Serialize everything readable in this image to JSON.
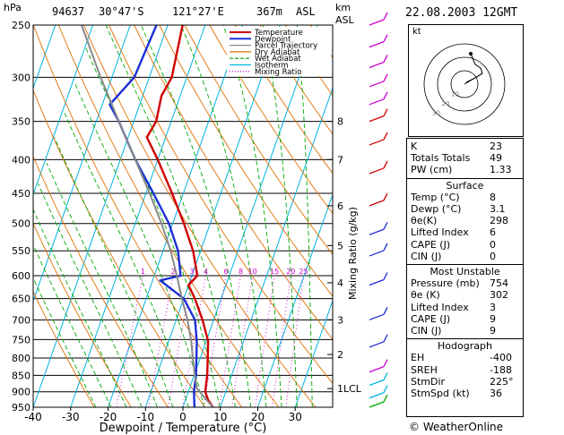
{
  "header": {
    "pressure_unit": "hPa",
    "station_id": "94637",
    "latitude": "30°47'S",
    "longitude": "121°27'E",
    "elevation": "367m",
    "asl": "ASL",
    "km_label": "km",
    "asl_label": "ASL",
    "date": "22.08.2003 12GMT"
  },
  "chart_data": {
    "type": "line",
    "chart_kind": "skew-T log-P",
    "xlabel": "Dewpoint / Temperature (°C)",
    "ylabel": "hPa",
    "xlim": [
      -40,
      40
    ],
    "ylim": [
      950,
      250
    ],
    "y_scale": "log",
    "pressure_ticks": [
      250,
      300,
      350,
      400,
      450,
      500,
      550,
      600,
      650,
      700,
      750,
      800,
      850,
      900,
      950
    ],
    "temperature_ticks": [
      -40,
      -30,
      -20,
      -10,
      0,
      10,
      20,
      30
    ],
    "height_km_ticks": [
      {
        "label": "8",
        "p": 350
      },
      {
        "label": "7",
        "p": 400
      },
      {
        "label": "6",
        "p": 470
      },
      {
        "label": "5",
        "p": 540
      },
      {
        "label": "4",
        "p": 615
      },
      {
        "label": "3",
        "p": 700
      },
      {
        "label": "2",
        "p": 790
      },
      {
        "label": "1LCL",
        "p": 890
      }
    ],
    "mixing_ratio_axis_label": "Mixing Ratio (g/kg)",
    "mixing_ratios": [
      "1",
      "2",
      "3",
      "4",
      "6",
      "8",
      "10",
      "15",
      "20",
      "25"
    ],
    "legend": [
      "Temperature",
      "Dewpoint",
      "Parcel Trajectory",
      "Dry Adiabat",
      "Wet Adiabat",
      "Isotherm",
      "Mixing Ratio"
    ],
    "legend_colors": [
      "#d00000",
      "#1b2fd6",
      "#888888",
      "#e07000",
      "#00a800",
      "#00b4e0",
      "#cc00cc"
    ],
    "series": [
      {
        "name": "Temperature",
        "color": "#d00000",
        "points": [
          {
            "p": 950,
            "t": 8.0
          },
          {
            "p": 925,
            "t": 6.0
          },
          {
            "p": 900,
            "t": 4.5
          },
          {
            "p": 875,
            "t": 4.0
          },
          {
            "p": 850,
            "t": 3.5
          },
          {
            "p": 800,
            "t": 2.0
          },
          {
            "p": 754,
            "t": 0.5
          },
          {
            "p": 700,
            "t": -3.0
          },
          {
            "p": 650,
            "t": -7.0
          },
          {
            "p": 620,
            "t": -10.0
          },
          {
            "p": 600,
            "t": -8.5
          },
          {
            "p": 550,
            "t": -12.0
          },
          {
            "p": 500,
            "t": -17.0
          },
          {
            "p": 450,
            "t": -23.0
          },
          {
            "p": 400,
            "t": -30.0
          },
          {
            "p": 370,
            "t": -35.0
          },
          {
            "p": 350,
            "t": -34.0
          },
          {
            "p": 320,
            "t": -35.0
          },
          {
            "p": 300,
            "t": -34.0
          },
          {
            "p": 250,
            "t": -36.0
          }
        ]
      },
      {
        "name": "Dewpoint",
        "color": "#1b2fd6",
        "points": [
          {
            "p": 950,
            "t": 3.1
          },
          {
            "p": 900,
            "t": 1.5
          },
          {
            "p": 850,
            "t": 0.5
          },
          {
            "p": 800,
            "t": -1.0
          },
          {
            "p": 754,
            "t": -2.5
          },
          {
            "p": 700,
            "t": -5.0
          },
          {
            "p": 650,
            "t": -10.0
          },
          {
            "p": 610,
            "t": -18.0
          },
          {
            "p": 600,
            "t": -13.0
          },
          {
            "p": 550,
            "t": -16.0
          },
          {
            "p": 500,
            "t": -21.0
          },
          {
            "p": 450,
            "t": -28.0
          },
          {
            "p": 400,
            "t": -36.0
          },
          {
            "p": 350,
            "t": -44.0
          },
          {
            "p": 330,
            "t": -48.0
          },
          {
            "p": 300,
            "t": -44.0
          },
          {
            "p": 250,
            "t": -43.0
          }
        ]
      },
      {
        "name": "Parcel Trajectory",
        "color": "#888888",
        "points": [
          {
            "p": 950,
            "t": 8.0
          },
          {
            "p": 890,
            "t": 2.0
          },
          {
            "p": 850,
            "t": 0.2
          },
          {
            "p": 800,
            "t": -2.0
          },
          {
            "p": 754,
            "t": -4.0
          },
          {
            "p": 700,
            "t": -7.0
          },
          {
            "p": 650,
            "t": -10.5
          },
          {
            "p": 600,
            "t": -14.0
          },
          {
            "p": 550,
            "t": -18.0
          },
          {
            "p": 500,
            "t": -23.0
          },
          {
            "p": 450,
            "t": -29.0
          },
          {
            "p": 400,
            "t": -36.0
          },
          {
            "p": 350,
            "t": -44.0
          },
          {
            "p": 300,
            "t": -53.0
          },
          {
            "p": 250,
            "t": -63.0
          }
        ]
      }
    ]
  },
  "hodograph": {
    "unit_label": "kt",
    "ring_labels": [
      "10",
      "20",
      "30"
    ]
  },
  "indices": [
    {
      "key": "K",
      "value": "23"
    },
    {
      "key": "Totals Totals",
      "value": "49"
    },
    {
      "key": "PW (cm)",
      "value": "1.33"
    }
  ],
  "surface": {
    "title": "Surface",
    "rows": [
      {
        "key": "Temp (°C)",
        "value": "8"
      },
      {
        "key": "Dewp (°C)",
        "value": "3.1"
      },
      {
        "key": "θe(K)",
        "value": "298"
      },
      {
        "key": "Lifted Index",
        "value": "6"
      },
      {
        "key": "CAPE (J)",
        "value": "0"
      },
      {
        "key": "CIN (J)",
        "value": "0"
      }
    ]
  },
  "most_unstable": {
    "title": "Most Unstable",
    "rows": [
      {
        "key": "Pressure (mb)",
        "value": "754"
      },
      {
        "key": "θe (K)",
        "value": "302"
      },
      {
        "key": "Lifted Index",
        "value": "3"
      },
      {
        "key": "CAPE (J)",
        "value": "9"
      },
      {
        "key": "CIN (J)",
        "value": "9"
      }
    ]
  },
  "hodo_table": {
    "title": "Hodograph",
    "rows": [
      {
        "key": "EH",
        "value": "-400"
      },
      {
        "key": "SREH",
        "value": "-188"
      },
      {
        "key": "StmDir",
        "value": "225°"
      },
      {
        "key": "StmSpd (kt)",
        "value": "36"
      }
    ]
  },
  "copyright": "© WeatherOnline"
}
